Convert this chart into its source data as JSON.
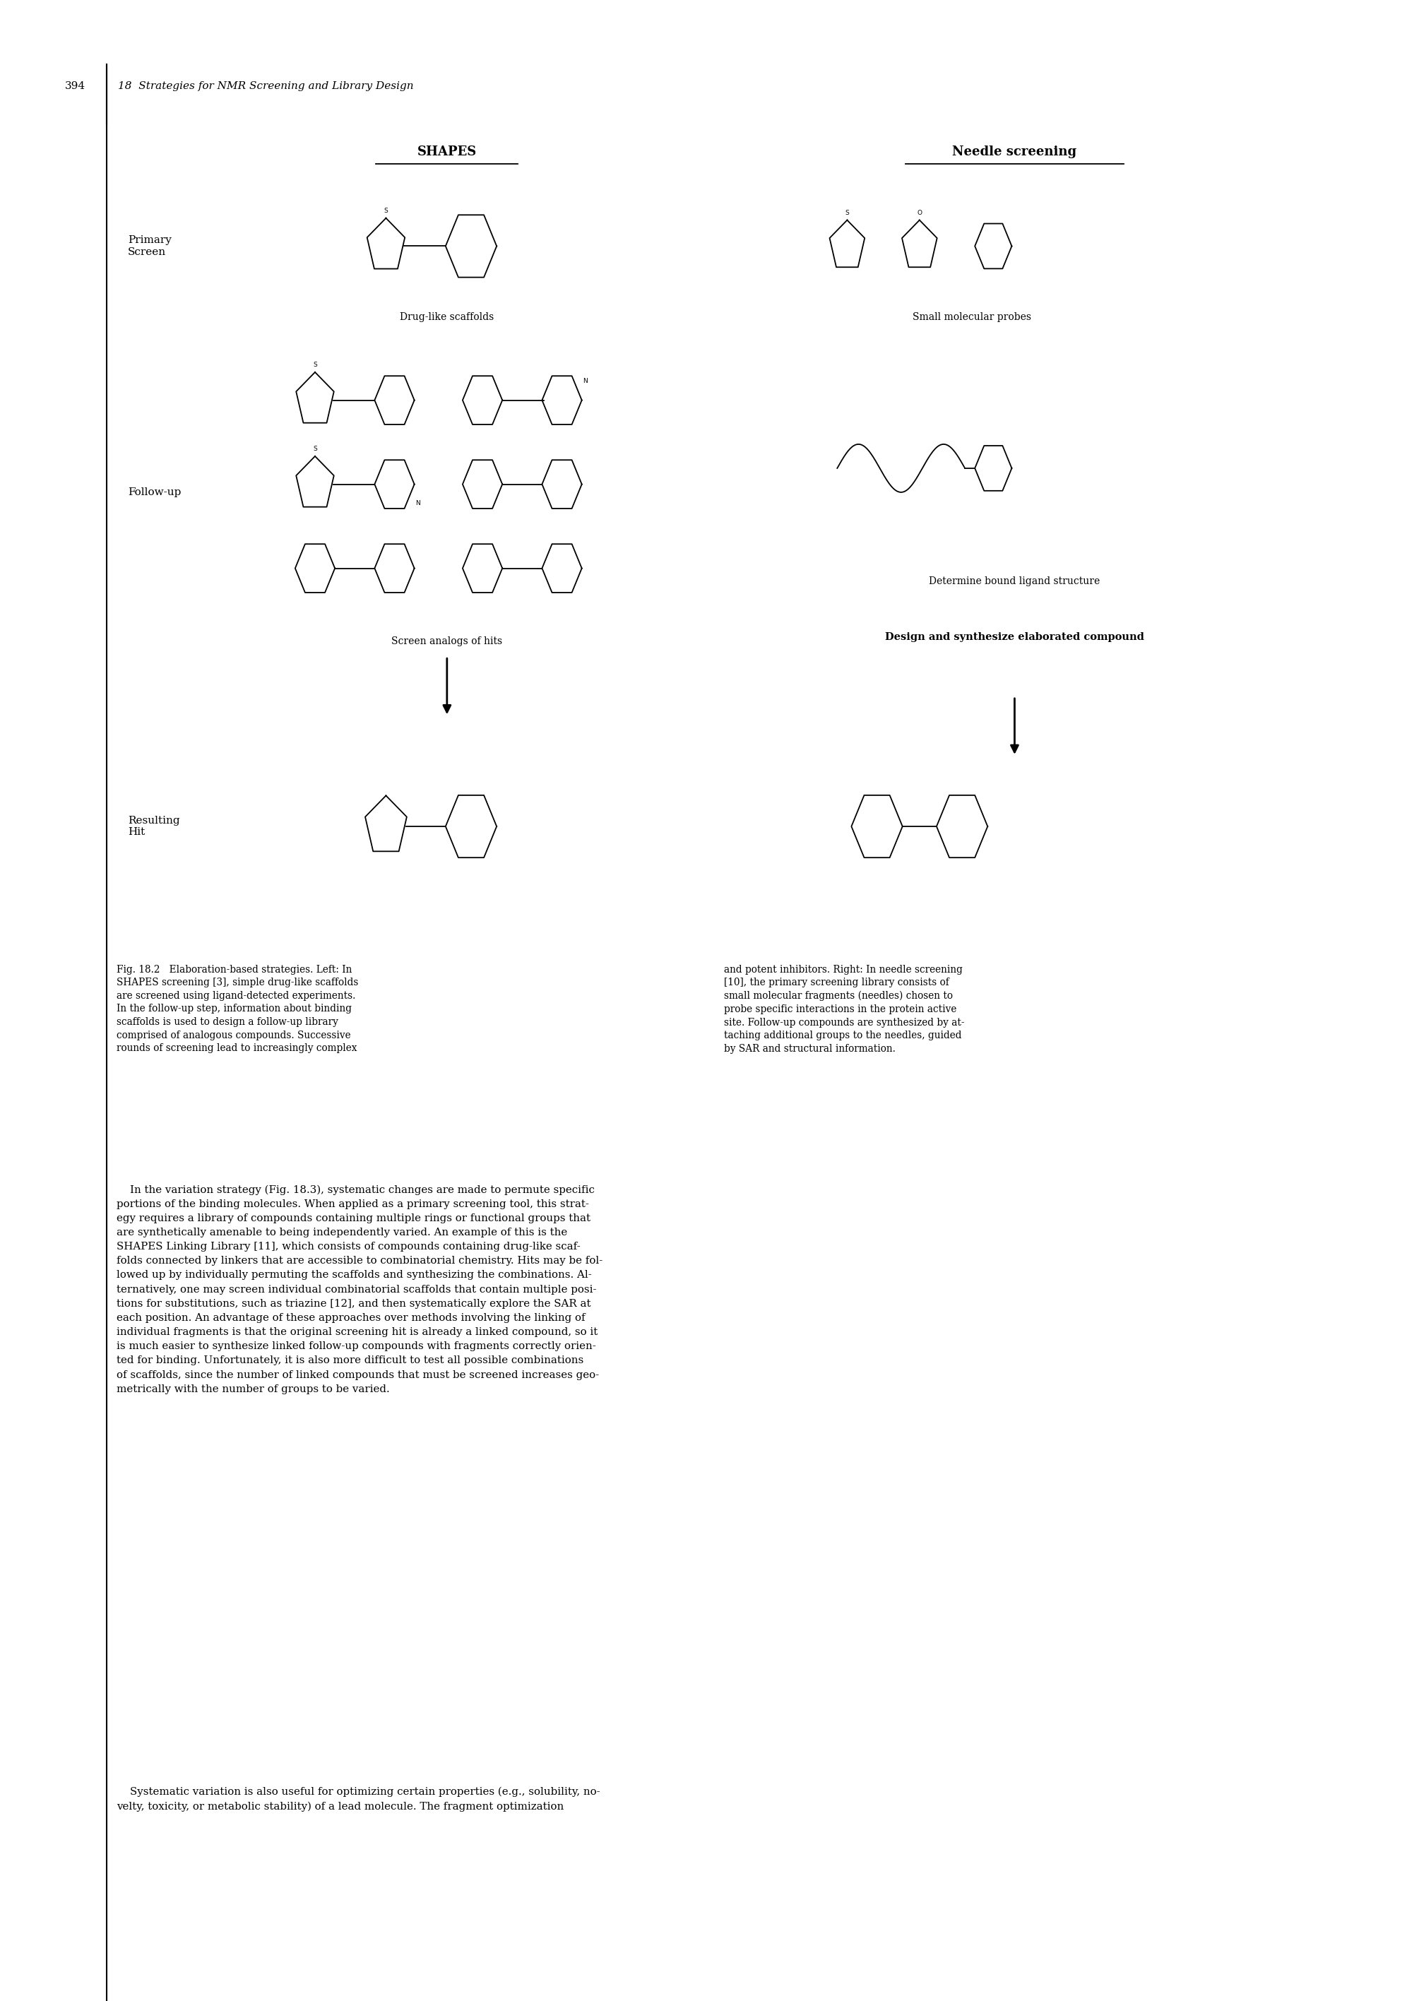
{
  "page_number": "394",
  "chapter_header": "18  Strategies for NMR Screening and Library Design",
  "bg_color": "#ffffff",
  "fig_width": 20.09,
  "fig_height": 28.33,
  "shapes_title": "SHAPES",
  "needle_title": "Needle screening",
  "primary_screen_label": "Primary\nScreen",
  "drug_like_label": "Drug-like scaffolds",
  "small_mol_label": "Small molecular probes",
  "followup_label": "Follow-up",
  "screen_analogs_label": "Screen analogs of hits",
  "det_bound_label": "Determine bound ligand structure",
  "design_synth_label": "Design and synthesize elaborated compound",
  "resulting_hit_label": "Resulting\nHit",
  "caption_left": "Fig. 18.2   Elaboration-based strategies. Left: In\nSHAPES screening [3], simple drug-like scaffolds\nare screened using ligand-detected experiments.\nIn the follow-up step, information about binding\nscaffolds is used to design a follow-up library\ncomprised of analogous compounds. Successive\nrounds of screening lead to increasingly complex",
  "caption_right": "and potent inhibitors. Right: In needle screening\n[10], the primary screening library consists of\nsmall molecular fragments (needles) chosen to\nprobe specific interactions in the protein active\nsite. Follow-up compounds are synthesized by at-\ntaching additional groups to the needles, guided\nby SAR and structural information.",
  "body1": "    In the variation strategy (Fig. 18.3), systematic changes are made to permute specific\nportions of the binding molecules. When applied as a primary screening tool, this strat-\negy requires a library of compounds containing multiple rings or functional groups that\nare synthetically amenable to being independently varied. An example of this is the\nSHAPES Linking Library [11], which consists of compounds containing drug-like scaf-\nfolds connected by linkers that are accessible to combinatorial chemistry. Hits may be fol-\nlowed up by individually permuting the scaffolds and synthesizing the combinations. Al-\nternatively, one may screen individual combinatorial scaffolds that contain multiple posi-\ntions for substitutions, such as triazine [12], and then systematically explore the SAR at\neach position. An advantage of these approaches over methods involving the linking of\nindividual fragments is that the original screening hit is already a linked compound, so it\nis much easier to synthesize linked follow-up compounds with fragments correctly orien-\nted for binding. Unfortunately, it is also more difficult to test all possible combinations\nof scaffolds, since the number of linked compounds that must be screened increases geo-\nmetrically with the number of groups to be varied.",
  "body2": "    Systematic variation is also useful for optimizing certain properties (e.g., solubility, no-\nvelty, toxicity, or metabolic stability) of a lead molecule. The fragment optimization"
}
